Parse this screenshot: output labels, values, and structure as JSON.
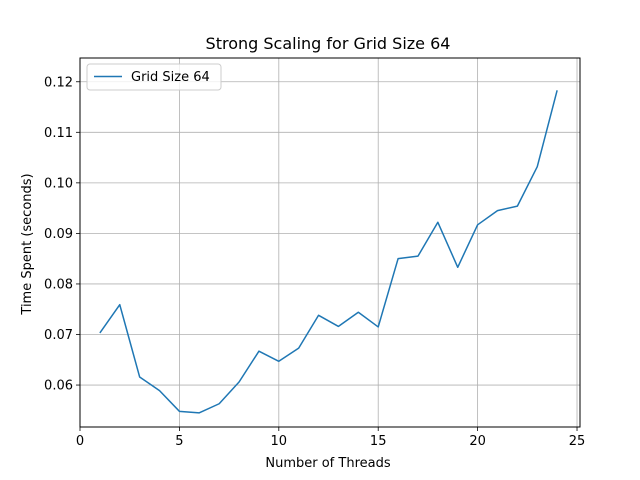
{
  "chart_data": {
    "type": "line",
    "title": "Strong Scaling for Grid Size 64",
    "xlabel": "Number of Threads",
    "ylabel": "Time Spent (seconds)",
    "xlim": [
      0.0,
      25.15
    ],
    "ylim": [
      0.0517,
      0.1247
    ],
    "xticks": [
      0,
      5,
      10,
      15,
      20,
      25
    ],
    "xtick_labels": [
      "0",
      "5",
      "10",
      "15",
      "20",
      "25"
    ],
    "yticks": [
      0.06,
      0.07,
      0.08,
      0.09,
      0.1,
      0.11,
      0.12
    ],
    "ytick_labels": [
      "0.06",
      "0.07",
      "0.08",
      "0.09",
      "0.10",
      "0.11",
      "0.12"
    ],
    "grid": true,
    "legend_position": "upper-left",
    "series": [
      {
        "name": "Grid Size 64",
        "color": "#1f77b4",
        "x": [
          1,
          2,
          3,
          4,
          5,
          6,
          7,
          8,
          9,
          10,
          11,
          12,
          13,
          14,
          15,
          16,
          17,
          18,
          19,
          20,
          21,
          22,
          23,
          24
        ],
        "y": [
          0.0703,
          0.0759,
          0.0616,
          0.0589,
          0.0548,
          0.0545,
          0.0563,
          0.0606,
          0.0667,
          0.0647,
          0.0673,
          0.0738,
          0.0716,
          0.0744,
          0.0715,
          0.085,
          0.0855,
          0.0922,
          0.0833,
          0.0917,
          0.0945,
          0.0954,
          0.1032,
          0.1183
        ]
      }
    ]
  }
}
